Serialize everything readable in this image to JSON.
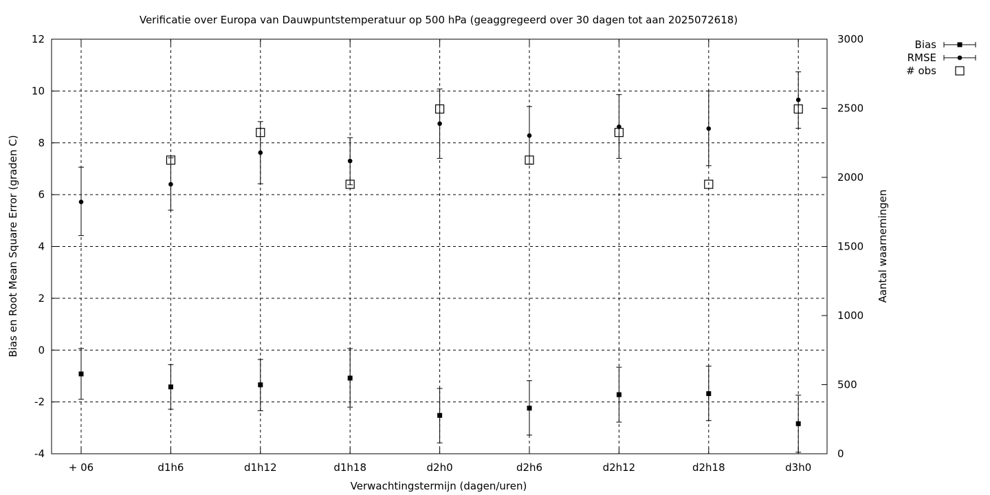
{
  "chart_data": {
    "type": "scatter",
    "title": "Verificatie over Europa van Dauwpuntstemperatuur op 500 hPa (geaggregeerd over 30 dagen tot aan 2025072618)",
    "xlabel": "Verwachtingstermijn (dagen/uren)",
    "ylabel": "Bias en Root Mean Square Error (graden C)",
    "y2label": "Aantal waarnemingen",
    "categories": [
      "+ 06",
      "d1h6",
      "d1h12",
      "d1h18",
      "d2h0",
      "d2h6",
      "d2h12",
      "d2h18",
      "d3h0"
    ],
    "ylim": [
      -4,
      12
    ],
    "yticks": [
      -4,
      -2,
      0,
      2,
      4,
      6,
      8,
      10,
      12
    ],
    "y2lim": [
      0,
      3000
    ],
    "y2ticks": [
      0,
      500,
      1000,
      1500,
      2000,
      2500,
      3000
    ],
    "grid": true,
    "legend_position": "top-right",
    "series": [
      {
        "name": "Bias",
        "marker": "square",
        "axis": "left",
        "values": [
          -0.92,
          -1.42,
          -1.34,
          -1.08,
          -2.52,
          -2.24,
          -1.72,
          -1.68,
          -2.84
        ],
        "err_low": [
          -1.9,
          -2.28,
          -2.34,
          -2.2,
          -3.58,
          -3.28,
          -2.78,
          -2.72,
          -3.94
        ],
        "err_high": [
          0.06,
          -0.56,
          -0.36,
          0.06,
          -1.48,
          -1.18,
          -0.66,
          -0.62,
          -1.74
        ]
      },
      {
        "name": "RMSE",
        "marker": "circle",
        "axis": "left",
        "values": [
          5.72,
          6.4,
          7.62,
          7.3,
          8.74,
          8.28,
          8.62,
          8.55,
          9.66
        ],
        "err_low": [
          4.42,
          5.4,
          6.42,
          6.38,
          7.4,
          7.18,
          7.4,
          7.12,
          8.56
        ],
        "err_high": [
          7.06,
          7.42,
          8.82,
          8.2,
          10.08,
          9.4,
          9.86,
          10.0,
          10.74
        ]
      },
      {
        "name": "# obs",
        "marker": "open-square",
        "axis": "right",
        "values": [
          null,
          2125,
          2325,
          1950,
          2495,
          2125,
          2325,
          1950,
          2495
        ]
      }
    ]
  }
}
